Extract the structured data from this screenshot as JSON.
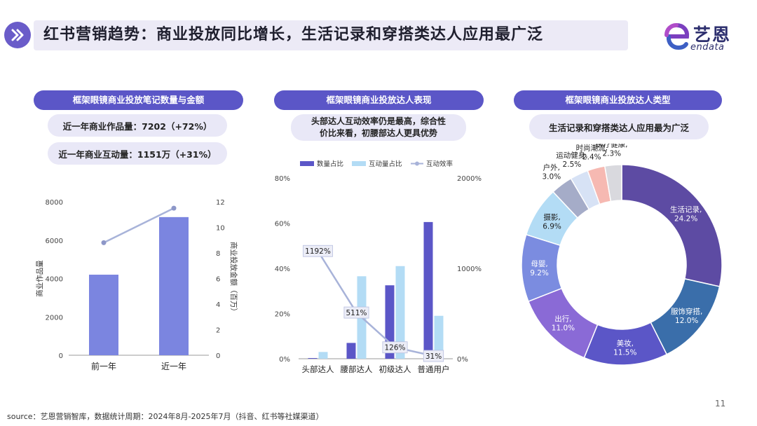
{
  "page": {
    "title": "红书营销趋势：商业投放同比增长，生活记录和穿搭类达人应用最广泛",
    "logo_cn": "艺恩",
    "logo_en": "endata",
    "page_number": "11",
    "source": "source：艺恩营销智库，数据统计周期：2024年8月-2025年7月（抖音、红书等社媒渠道）",
    "accent_color": "#5b56c7"
  },
  "panel1": {
    "header": "框架眼镜商业投放笔记数量与金额",
    "stat1": "近一年商业作品量：7202（+72%）",
    "stat2": "近一年商业互动量：1151万（+31%）"
  },
  "panel2": {
    "header": "框架眼镜商业投放达人表现",
    "note_line1": "头部达人互动效率仍是最高，综合性",
    "note_line2": "价比来看，初腰部达人更具优势"
  },
  "panel3": {
    "header": "框架眼镜商业投放达人类型",
    "note": "生活记录和穿搭类达人应用最为广泛"
  },
  "chart_data": [
    {
      "type": "bar",
      "categories": [
        "前一年",
        "近一年"
      ],
      "series": [
        {
          "name": "",
          "type": "bar",
          "axis": "left",
          "values": [
            4200,
            7202
          ],
          "color": "#7b85e0"
        },
        {
          "name": "",
          "type": "line",
          "axis": "right",
          "values": [
            8.8,
            11.5
          ],
          "color": "#a8b3d9"
        }
      ],
      "ylabel": "商业作品量",
      "y2label": "商业投放金额（百万）",
      "ylim": [
        0,
        8000
      ],
      "yticks": [
        "0",
        "2000",
        "4000",
        "6000",
        "8000"
      ],
      "y2lim": [
        0,
        12
      ],
      "y2ticks": [
        "0",
        "2",
        "4",
        "6",
        "8",
        "10",
        "12"
      ]
    },
    {
      "type": "bar",
      "categories": [
        "头部达人",
        "腰部达人",
        "初级达人",
        "普通用户"
      ],
      "series": [
        {
          "name": "数量占比",
          "type": "bar",
          "axis": "left",
          "values": [
            0.3,
            7.0,
            32.5,
            60.5
          ],
          "color": "#5b56c7"
        },
        {
          "name": "互动量占比",
          "type": "bar",
          "axis": "left",
          "values": [
            3.0,
            36.5,
            41.0,
            19.0
          ],
          "color": "#b3dcf5"
        },
        {
          "name": "互动效率",
          "type": "line",
          "axis": "right",
          "values": [
            1192,
            511,
            126,
            31
          ],
          "labels": [
            "1192%",
            "511%",
            "126%",
            "31%"
          ],
          "color": "#a8b3d9"
        }
      ],
      "ylim": [
        0,
        80
      ],
      "yticks": [
        "0%",
        "20%",
        "40%",
        "60%",
        "80%"
      ],
      "y2lim": [
        0,
        2000
      ],
      "y2ticks": [
        "0%",
        "1000%",
        "2000%"
      ]
    },
    {
      "type": "pie",
      "donut": true,
      "slices": [
        {
          "label": "生活记录",
          "value": 24.2,
          "text": "24.2%",
          "color": "#5d4ba3"
        },
        {
          "label": "服饰穿搭",
          "value": 12.0,
          "text": "12.0%",
          "color": "#3a6eaa"
        },
        {
          "label": "美妆",
          "value": 11.5,
          "text": "11.5%",
          "color": "#5b56c7"
        },
        {
          "label": "出行",
          "value": 11.0,
          "text": "11.0%",
          "color": "#8a6ad6"
        },
        {
          "label": "母婴",
          "value": 9.2,
          "text": "9.2%",
          "color": "#7b8ce0"
        },
        {
          "label": "摄影",
          "value": 6.9,
          "text": "6.9%",
          "color": "#b3dcf5"
        },
        {
          "label": "户外",
          "value": 3.0,
          "text": "3.0%",
          "color": "#a5acc8"
        },
        {
          "label": "运动健身",
          "value": 2.5,
          "text": "2.5%",
          "color": "#d7e2f5"
        },
        {
          "label": "时尚潮流",
          "value": 2.4,
          "text": "2.4%",
          "color": "#f6b9b2"
        },
        {
          "label": "医疗健康",
          "value": 2.3,
          "text": "2.3%",
          "color": "#d9d9de"
        }
      ]
    }
  ]
}
